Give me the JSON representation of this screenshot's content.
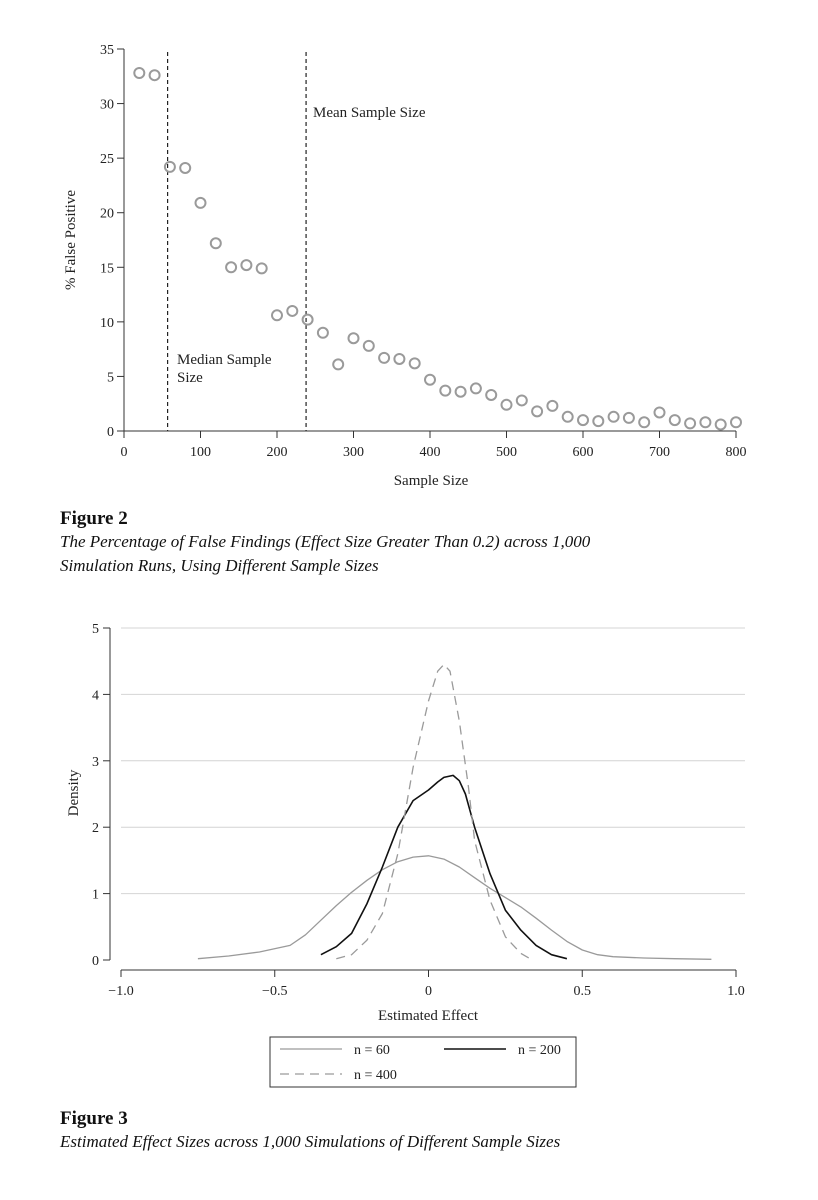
{
  "figure2": {
    "label": "Figure 2",
    "caption_line1": "The Percentage of False Findings (Effect Size Greater Than 0.2) across 1,000",
    "caption_line2": "Simulation Runs, Using Different Sample Sizes"
  },
  "figure3": {
    "label": "Figure 3",
    "caption": "Estimated Effect Sizes across 1,000 Simulations of Different Sample Sizes"
  },
  "chart_data": [
    {
      "type": "scatter",
      "xlabel": "Sample Size",
      "ylabel": "% False Positive",
      "xlim": [
        0,
        800
      ],
      "ylim": [
        0,
        35
      ],
      "xticks": [
        0,
        100,
        200,
        300,
        400,
        500,
        600,
        700,
        800
      ],
      "yticks": [
        0,
        5,
        10,
        15,
        20,
        25,
        30,
        35
      ],
      "x": [
        20,
        40,
        60,
        80,
        100,
        120,
        140,
        160,
        180,
        200,
        220,
        240,
        260,
        280,
        300,
        320,
        340,
        360,
        380,
        400,
        420,
        440,
        460,
        480,
        500,
        520,
        540,
        560,
        580,
        600,
        620,
        640,
        660,
        680,
        700,
        720,
        740,
        760,
        780,
        800
      ],
      "y": [
        32.8,
        32.6,
        24.2,
        24.1,
        20.9,
        17.2,
        15.0,
        15.2,
        14.9,
        10.6,
        11.0,
        10.2,
        9.0,
        6.1,
        8.5,
        7.8,
        6.7,
        6.6,
        6.2,
        4.7,
        3.7,
        3.6,
        3.9,
        3.3,
        2.4,
        2.8,
        1.8,
        2.3,
        1.3,
        1.0,
        0.9,
        1.3,
        1.2,
        0.8,
        1.7,
        1.0,
        0.7,
        0.8,
        0.6,
        0.8
      ],
      "reference_lines": [
        {
          "x": 57,
          "label_line1": "Median Sample",
          "label_line2": "Size"
        },
        {
          "x": 238,
          "label_line1": "Mean Sample Size",
          "label_line2": ""
        }
      ]
    },
    {
      "type": "line",
      "xlabel": "Estimated Effect",
      "ylabel": "Density",
      "xlim": [
        -1.0,
        1.0
      ],
      "ylim": [
        0,
        5
      ],
      "xticks": [
        -1.0,
        -0.5,
        0,
        0.5,
        1.0
      ],
      "xtick_labels": [
        "−1.0",
        "−0.5",
        "0",
        "0.5",
        "1.0"
      ],
      "yticks": [
        0,
        1,
        2,
        3,
        4,
        5
      ],
      "grid": true,
      "legend_position": "bottom-center",
      "series": [
        {
          "name": "n = 60",
          "color": "#9a9a9a",
          "style": "solid",
          "x": [
            -0.75,
            -0.65,
            -0.55,
            -0.45,
            -0.4,
            -0.35,
            -0.3,
            -0.25,
            -0.2,
            -0.15,
            -0.1,
            -0.05,
            0.0,
            0.05,
            0.1,
            0.15,
            0.2,
            0.25,
            0.3,
            0.35,
            0.4,
            0.45,
            0.5,
            0.55,
            0.6,
            0.7,
            0.8,
            0.92
          ],
          "y": [
            0.02,
            0.06,
            0.12,
            0.22,
            0.38,
            0.6,
            0.82,
            1.02,
            1.2,
            1.36,
            1.48,
            1.55,
            1.57,
            1.52,
            1.4,
            1.24,
            1.08,
            0.94,
            0.8,
            0.63,
            0.45,
            0.28,
            0.15,
            0.08,
            0.05,
            0.03,
            0.02,
            0.01
          ]
        },
        {
          "name": "n = 200",
          "color": "#111111",
          "style": "solid",
          "x": [
            -0.35,
            -0.3,
            -0.25,
            -0.2,
            -0.15,
            -0.1,
            -0.05,
            0.0,
            0.03,
            0.05,
            0.08,
            0.1,
            0.12,
            0.15,
            0.2,
            0.25,
            0.3,
            0.35,
            0.4,
            0.45
          ],
          "y": [
            0.08,
            0.2,
            0.4,
            0.85,
            1.4,
            2.0,
            2.4,
            2.56,
            2.68,
            2.75,
            2.78,
            2.7,
            2.5,
            2.0,
            1.3,
            0.75,
            0.45,
            0.22,
            0.08,
            0.02
          ]
        },
        {
          "name": "n = 400",
          "color": "#9a9a9a",
          "style": "dashed",
          "x": [
            -0.3,
            -0.25,
            -0.2,
            -0.15,
            -0.1,
            -0.05,
            0.0,
            0.03,
            0.05,
            0.07,
            0.1,
            0.13,
            0.15,
            0.2,
            0.25,
            0.3,
            0.33
          ],
          "y": [
            0.02,
            0.08,
            0.3,
            0.7,
            1.6,
            2.9,
            3.9,
            4.35,
            4.45,
            4.35,
            3.6,
            2.6,
            1.8,
            0.9,
            0.35,
            0.1,
            0.02
          ]
        }
      ]
    }
  ]
}
